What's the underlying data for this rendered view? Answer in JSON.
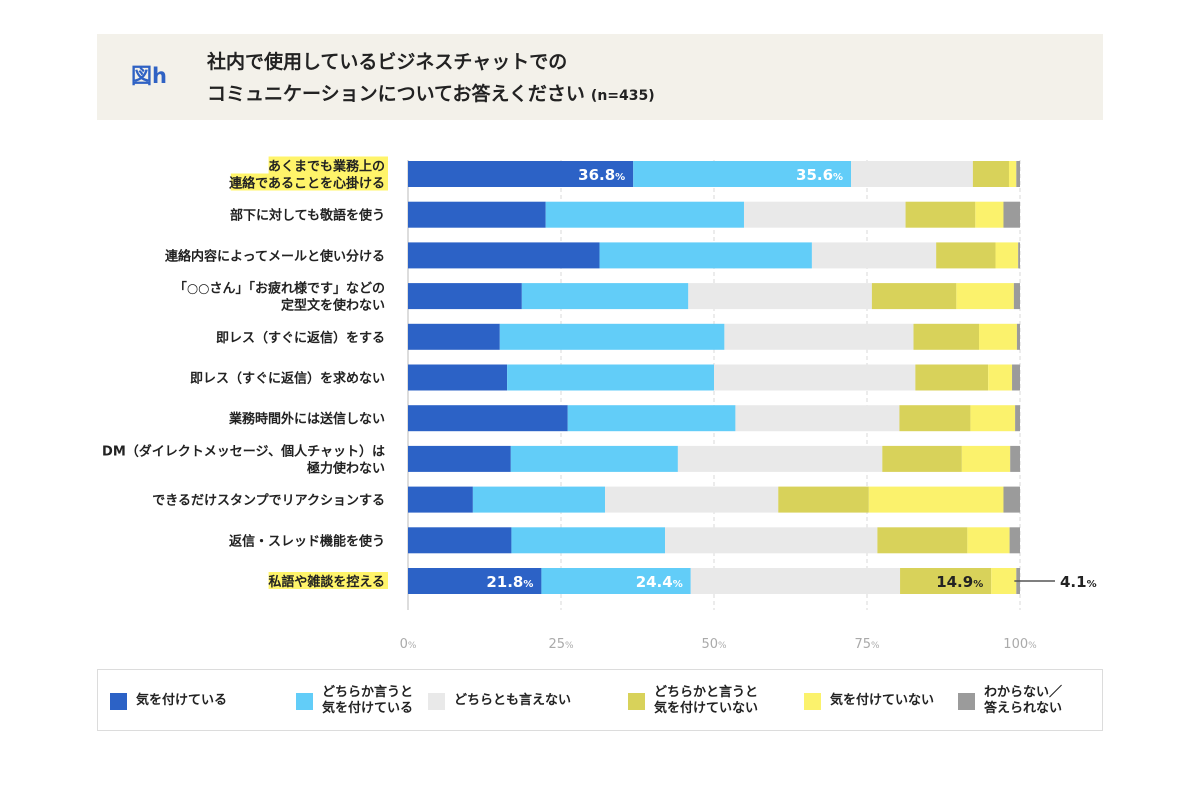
{
  "header": {
    "fig_label": "図h",
    "title_line1": "社内で使用しているビジネスチャットでの",
    "title_line2": "コミュニケーションについてお答えください",
    "sample_size": "(n=435)"
  },
  "chart_data": {
    "type": "bar",
    "orientation": "horizontal",
    "stacked": true,
    "xlim": [
      0,
      100
    ],
    "x_ticks": [
      "0%",
      "25%",
      "50%",
      "75%",
      "100%"
    ],
    "grid": true,
    "legend_position": "bottom",
    "categories": [
      "あくまでも業務上の\n連絡であることを心掛ける",
      "部下に対しても敬語を使う",
      "連絡内容によってメールと使い分ける",
      "「○○さん」「お疲れ様です」などの\n定型文を使わない",
      "即レス（すぐに返信）をする",
      "即レス（すぐに返信）を求めない",
      "業務時間外には送信しない",
      "DM（ダイレクトメッセージ、個人チャット）は\n極力使わない",
      "できるだけスタンプでリアクションする",
      "返信・スレッド機能を使う",
      "私語や雑談を控える"
    ],
    "highlighted_categories": [
      0,
      10
    ],
    "series": [
      {
        "name": "気を付けている",
        "color": "#2c62c6",
        "values": [
          36.8,
          22.5,
          31.3,
          18.6,
          15.0,
          16.2,
          26.1,
          16.8,
          10.6,
          16.9,
          21.8
        ]
      },
      {
        "name": "どちらか言うと\n気を付けている",
        "color": "#62cdf8",
        "values": [
          35.6,
          32.4,
          34.7,
          27.2,
          36.7,
          33.8,
          27.4,
          27.3,
          21.6,
          25.1,
          24.4
        ]
      },
      {
        "name": "どちらとも言えない",
        "color": "#e9e9e9",
        "values": [
          19.9,
          26.4,
          20.3,
          30.0,
          30.9,
          32.9,
          26.8,
          33.4,
          28.3,
          34.7,
          34.2
        ]
      },
      {
        "name": "どちらかと言うと\n気を付けていない",
        "color": "#d8d25a",
        "values": [
          5.9,
          11.4,
          9.7,
          13.8,
          10.7,
          11.9,
          11.6,
          13.0,
          14.8,
          14.7,
          14.9
        ]
      },
      {
        "name": "気を付けていない",
        "color": "#fbf26c",
        "values": [
          1.2,
          4.6,
          3.7,
          9.4,
          6.2,
          3.9,
          7.3,
          7.9,
          22.0,
          6.9,
          4.1
        ]
      },
      {
        "name": "わからない／\n答えられない",
        "color": "#9b9b9b",
        "values": [
          0.6,
          2.7,
          0.3,
          1.0,
          0.5,
          1.3,
          0.8,
          1.6,
          2.7,
          1.7,
          0.6
        ]
      }
    ],
    "data_labels": [
      {
        "row": 0,
        "series": 0,
        "text": "36.8",
        "unit": "%"
      },
      {
        "row": 0,
        "series": 1,
        "text": "35.6",
        "unit": "%"
      },
      {
        "row": 10,
        "series": 0,
        "text": "21.8",
        "unit": "%"
      },
      {
        "row": 10,
        "series": 1,
        "text": "24.4",
        "unit": "%"
      },
      {
        "row": 10,
        "series": 3,
        "text": "14.9",
        "unit": "%"
      },
      {
        "row": 10,
        "series": 4,
        "text": "4.1",
        "unit": "%",
        "callout": true
      }
    ]
  }
}
